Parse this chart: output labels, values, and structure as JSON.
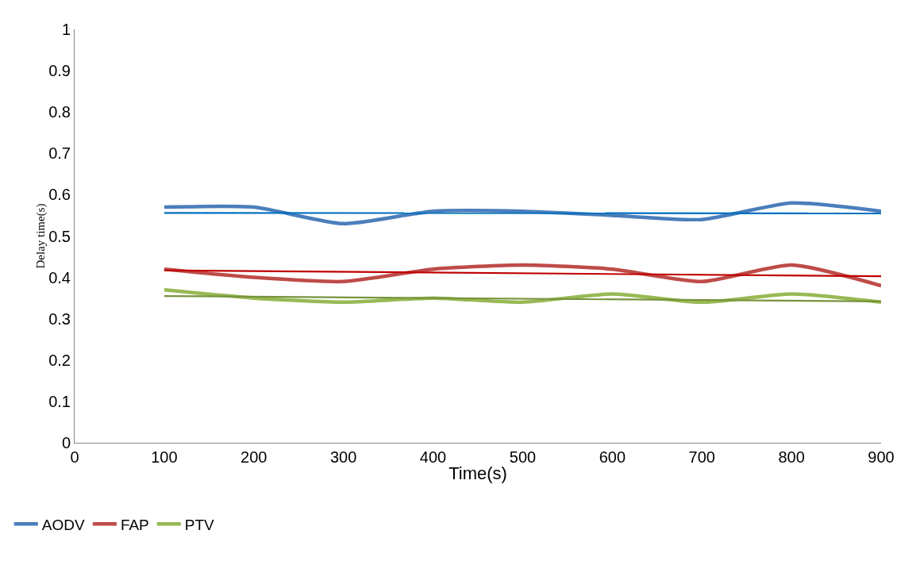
{
  "chart_data": {
    "type": "line",
    "xlabel": "Time(s)",
    "ylabel": "Delay time(s)",
    "x": [
      100,
      200,
      300,
      400,
      500,
      600,
      700,
      800,
      900
    ],
    "series": [
      {
        "name": "AODV",
        "color": "#4a7ebb",
        "values": [
          0.57,
          0.57,
          0.53,
          0.56,
          0.56,
          0.55,
          0.54,
          0.58,
          0.56
        ]
      },
      {
        "name": "FAP",
        "color": "#be4b48",
        "values": [
          0.42,
          0.4,
          0.39,
          0.42,
          0.43,
          0.42,
          0.39,
          0.43,
          0.38
        ]
      },
      {
        "name": "PTV",
        "color": "#98b954",
        "values": [
          0.37,
          0.35,
          0.34,
          0.35,
          0.34,
          0.36,
          0.34,
          0.36,
          0.34
        ]
      },
      {
        "type": "line",
        "color": "#0070c0",
        "values": [
          0.556,
          null,
          null,
          null,
          null,
          null,
          null,
          null,
          0.555
        ]
      },
      {
        "type": "line",
        "color": "#c00000",
        "values": [
          0.417,
          null,
          null,
          null,
          null,
          null,
          null,
          null,
          0.403
        ]
      },
      {
        "type": "line",
        "color": "#77933c",
        "values": [
          0.355,
          null,
          null,
          null,
          null,
          null,
          null,
          null,
          0.342
        ]
      }
    ],
    "xlim": [
      0,
      900
    ],
    "xticks": [
      0,
      100,
      200,
      300,
      400,
      500,
      600,
      700,
      800,
      900
    ],
    "ylim": [
      0,
      1
    ],
    "yticks": [
      0,
      0.1,
      0.2,
      0.3,
      0.4,
      0.5,
      0.6,
      0.7,
      0.8,
      0.9,
      1
    ],
    "grid": false,
    "legend": "bottom left",
    "marker": "none",
    "line_style": "solid"
  }
}
